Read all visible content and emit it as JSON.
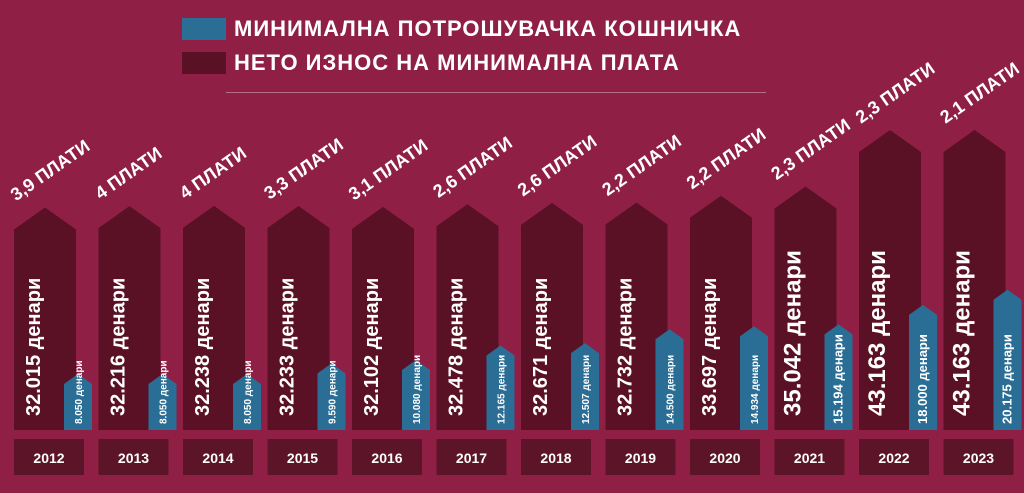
{
  "legend": {
    "items": [
      {
        "label": "МИНИМАЛНА ПОТРОШУВАЧКА КОШНИЧКА",
        "color": "#2a6e96"
      },
      {
        "label": "НЕТО ИЗНОС НА МИНИМАЛНА ПЛАТА",
        "color": "#5a1125"
      }
    ]
  },
  "colors": {
    "background": "#8f1f45",
    "salary_bar": "#5a1125",
    "basket_bar": "#2a6e96",
    "year_box": "#5c1528",
    "text": "#ffffff"
  },
  "chart_data": {
    "type": "bar",
    "categories": [
      "2012",
      "2013",
      "2014",
      "2015",
      "2016",
      "2017",
      "2018",
      "2019",
      "2020",
      "2021",
      "2022",
      "2023"
    ],
    "series": [
      {
        "name": "НЕТО ИЗНОС НА МИНИМАЛНА ПЛАТА",
        "values": [
          32015,
          32216,
          32238,
          32233,
          32102,
          32478,
          32671,
          32732,
          33697,
          35042,
          43163,
          43163
        ],
        "labels": [
          "32.015 денари",
          "32.216 денари",
          "32.238 денари",
          "32.233 денари",
          "32.102 денари",
          "32.478 денари",
          "32.671 денари",
          "32.732 денари",
          "33.697 денари",
          "35.042 денари",
          "43.163 денари",
          "43.163 денари"
        ]
      },
      {
        "name": "МИНИМАЛНА ПОТРОШУВАЧКА КОШНИЧКА",
        "values": [
          8050,
          8050,
          8050,
          9590,
          10080,
          12165,
          12507,
          14500,
          14934,
          15194,
          18000,
          20175
        ],
        "labels": [
          "8.050 денари",
          "8.050 денари",
          "8.050 денари",
          "9.590 денари",
          "10.080 денари",
          "12.165 денари",
          "12.507 денари",
          "14.500 денари",
          "14.934 денари",
          "15.194 денари",
          "18.000 денари",
          "20.175 денари"
        ]
      }
    ],
    "ratio_labels": [
      "3,9 ПЛАТИ",
      "4 ПЛАТИ",
      "4 ПЛАТИ",
      "3,3 ПЛАТИ",
      "3,1 ПЛАТИ",
      "2,6 ПЛАТИ",
      "2,6 ПЛАТИ",
      "2,2 ПЛАТИ",
      "2,2 ПЛАТИ",
      "2,3 ПЛАТИ",
      "2,3 ПЛАТИ",
      "2,1 ПЛАТИ"
    ]
  }
}
